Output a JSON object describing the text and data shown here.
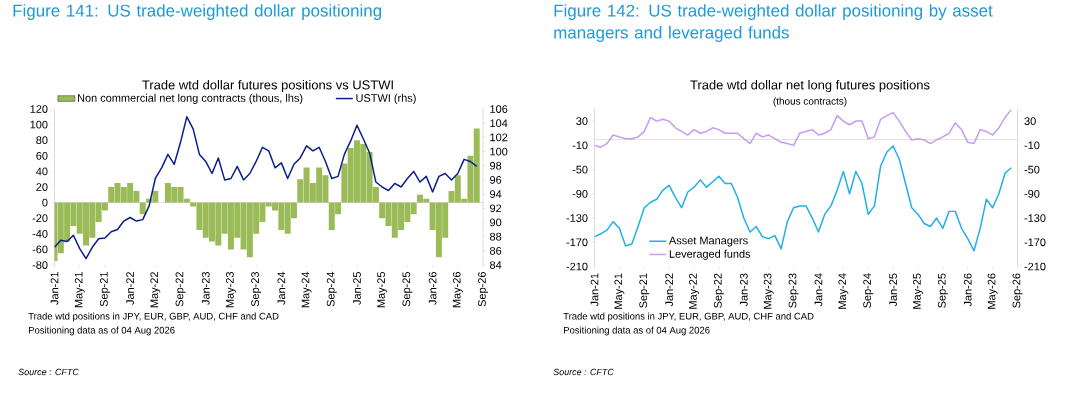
{
  "chart_data": [
    {
      "type": "bar",
      "title": "Figure 141: US trade-weighted dollar positioning",
      "subtitle": "Trade wtd dollar futures positions  vs USTWI",
      "annotations": [
        "Trade wtd positions in JPY, EUR, GBP, AUD, CHF and CAD",
        "Positioning data as of 04 Aug 2026",
        "Source : CFTC"
      ],
      "x": [
        "2021-01",
        "2021-02",
        "2021-03",
        "2021-04",
        "2021-05",
        "2021-06",
        "2021-07",
        "2021-08",
        "2021-09",
        "2021-10",
        "2021-11",
        "2021-12",
        "2022-01",
        "2022-02",
        "2022-03",
        "2022-04",
        "2022-05",
        "2022-06",
        "2022-07",
        "2022-08",
        "2022-09",
        "2022-10",
        "2022-11",
        "2022-12",
        "2023-01",
        "2023-02",
        "2023-03",
        "2023-04",
        "2023-05",
        "2023-06",
        "2023-07",
        "2023-08",
        "2023-09",
        "2023-10",
        "2023-11",
        "2023-12",
        "2024-01",
        "2024-02",
        "2024-03",
        "2024-04",
        "2024-05",
        "2024-06",
        "2024-07",
        "2024-08",
        "2024-09",
        "2024-10",
        "2024-11",
        "2024-12",
        "2025-01",
        "2025-02",
        "2025-03",
        "2025-04",
        "2025-05",
        "2025-06",
        "2025-07",
        "2025-08",
        "2025-09",
        "2025-10",
        "2025-11",
        "2025-12",
        "2026-01",
        "2026-02",
        "2026-03",
        "2026-04",
        "2026-05",
        "2026-06",
        "2026-07",
        "2026-08"
      ],
      "series": [
        {
          "name": "Non commercial net long contracts (thous, lhs)",
          "type": "bar",
          "color": "#9bbb59",
          "values": [
            -75,
            -65,
            -50,
            -30,
            -40,
            -55,
            -45,
            -25,
            -10,
            20,
            25,
            20,
            25,
            15,
            -15,
            5,
            15,
            0,
            25,
            20,
            20,
            5,
            -5,
            -35,
            -45,
            -50,
            -55,
            -40,
            -60,
            -45,
            -60,
            -70,
            -40,
            -25,
            -5,
            -10,
            -35,
            -40,
            -20,
            30,
            45,
            25,
            45,
            35,
            -35,
            -15,
            50,
            70,
            80,
            75,
            65,
            20,
            -20,
            -30,
            -45,
            -35,
            -25,
            -15,
            10,
            5,
            -35,
            -70,
            -45,
            15,
            35,
            5,
            60,
            95
          ]
        },
        {
          "name": "USTWI (rhs)",
          "type": "line",
          "axis": "y2",
          "color": "#0a1e8c",
          "values": [
            86.5,
            87.5,
            87.3,
            88.2,
            86.3,
            84.9,
            86.5,
            87.7,
            87.8,
            88.7,
            89,
            90.2,
            90.7,
            90.2,
            90.4,
            92.3,
            96.2,
            97.7,
            99.6,
            98.2,
            101.3,
            104.9,
            103.2,
            99.6,
            98.6,
            96.9,
            99.1,
            96,
            96.2,
            97.9,
            96,
            96.9,
            98.6,
            100.6,
            100.1,
            97.7,
            98.4,
            96.2,
            98.2,
            99.1,
            100.8,
            100.1,
            100.6,
            98.6,
            96.2,
            96.5,
            99.6,
            101.5,
            103.7,
            101.8,
            99.8,
            95.7,
            95,
            94.5,
            95.5,
            95,
            96.2,
            97.2,
            95.7,
            96.5,
            94.3,
            96.5,
            96.9,
            96,
            96.9,
            98.9,
            98.6,
            97.9
          ]
        }
      ],
      "xlim": [
        "2021-01",
        "2026-09"
      ],
      "xticks": [
        {
          "value": "2021-01",
          "label": "Jan-21"
        },
        {
          "value": "2021-05",
          "label": "May-21"
        },
        {
          "value": "2021-09",
          "label": "Sep-21"
        },
        {
          "value": "2022-01",
          "label": "Jan-22"
        },
        {
          "value": "2022-05",
          "label": "May-22"
        },
        {
          "value": "2022-09",
          "label": "Sep-22"
        },
        {
          "value": "2023-01",
          "label": "Jan-23"
        },
        {
          "value": "2023-05",
          "label": "May-23"
        },
        {
          "value": "2023-09",
          "label": "Sep-23"
        },
        {
          "value": "2024-01",
          "label": "Jan-24"
        },
        {
          "value": "2024-05",
          "label": "May-24"
        },
        {
          "value": "2024-09",
          "label": "Sep-24"
        },
        {
          "value": "2025-01",
          "label": "Jan-25"
        },
        {
          "value": "2025-05",
          "label": "May-25"
        },
        {
          "value": "2025-09",
          "label": "Sep-25"
        },
        {
          "value": "2026-01",
          "label": "Jan-26"
        },
        {
          "value": "2026-05",
          "label": "May-26"
        },
        {
          "value": "2026-09",
          "label": "Sep-26"
        }
      ],
      "ylim": [
        -80,
        120
      ],
      "yticks": [
        -80,
        -60,
        -40,
        -20,
        0,
        20,
        40,
        60,
        80,
        100,
        120
      ],
      "y2lim": [
        84,
        106
      ],
      "y2ticks": [
        84,
        86,
        88,
        90,
        92,
        94,
        96,
        98,
        100,
        102,
        104,
        106
      ],
      "legend": "top"
    },
    {
      "type": "line",
      "title": "Figure 142: US trade-weighted dollar positioning by asset managers and leveraged funds",
      "subtitle": "Trade wtd dollar net long futures positions",
      "annotations": [
        "(thous contracts)",
        "Trade wtd positions in JPY, EUR, GBP, AUD, CHF and CAD",
        "Positioning data as of 04 Aug 2026",
        "Source : CFTC"
      ],
      "x": [
        "2021-01",
        "2021-02",
        "2021-03",
        "2021-04",
        "2021-05",
        "2021-06",
        "2021-07",
        "2021-08",
        "2021-09",
        "2021-10",
        "2021-11",
        "2021-12",
        "2022-01",
        "2022-02",
        "2022-03",
        "2022-04",
        "2022-05",
        "2022-06",
        "2022-07",
        "2022-08",
        "2022-09",
        "2022-10",
        "2022-11",
        "2022-12",
        "2023-01",
        "2023-02",
        "2023-03",
        "2023-04",
        "2023-05",
        "2023-06",
        "2023-07",
        "2023-08",
        "2023-09",
        "2023-10",
        "2023-11",
        "2023-12",
        "2024-01",
        "2024-02",
        "2024-03",
        "2024-04",
        "2024-05",
        "2024-06",
        "2024-07",
        "2024-08",
        "2024-09",
        "2024-10",
        "2024-11",
        "2024-12",
        "2025-01",
        "2025-02",
        "2025-03",
        "2025-04",
        "2025-05",
        "2025-06",
        "2025-07",
        "2025-08",
        "2025-09",
        "2025-10",
        "2025-11",
        "2025-12",
        "2026-01",
        "2026-02",
        "2026-03",
        "2026-04",
        "2026-05",
        "2026-06",
        "2026-07",
        "2026-08"
      ],
      "series": [
        {
          "name": "Asset Managers",
          "color": "#1eb0e6",
          "values": [
            -161,
            -156,
            -150,
            -136,
            -147,
            -176,
            -173,
            -144,
            -113,
            -104,
            -99,
            -84,
            -76,
            -96,
            -113,
            -87,
            -79,
            -67,
            -79,
            -70,
            -61,
            -73,
            -73,
            -96,
            -130,
            -153,
            -144,
            -161,
            -164,
            -159,
            -181,
            -136,
            -113,
            -110,
            -110,
            -130,
            -153,
            -124,
            -110,
            -84,
            -53,
            -90,
            -53,
            -73,
            -124,
            -110,
            -44,
            -21,
            -11,
            -33,
            -73,
            -113,
            -124,
            -139,
            -144,
            -130,
            -147,
            -119,
            -119,
            -147,
            -164,
            -184,
            -147,
            -99,
            -113,
            -90,
            -56,
            -47
          ]
        },
        {
          "name": "Leveraged funds",
          "color": "#c49cf0",
          "values": [
            -10,
            -13,
            -7,
            7,
            4,
            1,
            1,
            4,
            13,
            36,
            30,
            33,
            30,
            19,
            13,
            7,
            16,
            10,
            13,
            19,
            16,
            10,
            10,
            10,
            1,
            -7,
            10,
            4,
            7,
            1,
            -5,
            -7,
            -10,
            10,
            13,
            16,
            7,
            10,
            16,
            39,
            30,
            24,
            30,
            30,
            1,
            4,
            33,
            39,
            44,
            30,
            13,
            -1,
            1,
            -1,
            -7,
            -1,
            4,
            10,
            27,
            16,
            -5,
            -7,
            16,
            13,
            7,
            19,
            36,
            49
          ]
        }
      ],
      "xlim": [
        "2021-01",
        "2026-09"
      ],
      "xticks": [
        {
          "value": "2021-01",
          "label": "Jan-21"
        },
        {
          "value": "2021-05",
          "label": "May-21"
        },
        {
          "value": "2021-09",
          "label": "Sep-21"
        },
        {
          "value": "2022-01",
          "label": "Jan-22"
        },
        {
          "value": "2022-05",
          "label": "May-22"
        },
        {
          "value": "2022-09",
          "label": "Sep-22"
        },
        {
          "value": "2023-01",
          "label": "Jan-23"
        },
        {
          "value": "2023-05",
          "label": "May-23"
        },
        {
          "value": "2023-09",
          "label": "Sep-23"
        },
        {
          "value": "2024-01",
          "label": "Jan-24"
        },
        {
          "value": "2024-05",
          "label": "May-24"
        },
        {
          "value": "2024-09",
          "label": "Sep-24"
        },
        {
          "value": "2025-01",
          "label": "Jan-25"
        },
        {
          "value": "2025-05",
          "label": "May-25"
        },
        {
          "value": "2025-09",
          "label": "Sep-25"
        },
        {
          "value": "2026-01",
          "label": "Jan-26"
        },
        {
          "value": "2026-05",
          "label": "May-26"
        },
        {
          "value": "2026-09",
          "label": "Sep-26"
        }
      ],
      "ylim": [
        -210,
        50
      ],
      "yticks": [
        -210,
        -170,
        -130,
        -90,
        -50,
        -10,
        30
      ],
      "y2lim": [
        -210,
        50
      ],
      "y2ticks": [
        -210,
        -170,
        -130,
        -90,
        -50,
        -10,
        30
      ],
      "ref_lines": [
        {
          "axis": "y",
          "value": 0,
          "color": "#a6a6a6"
        }
      ],
      "legend": "bottom left"
    }
  ]
}
